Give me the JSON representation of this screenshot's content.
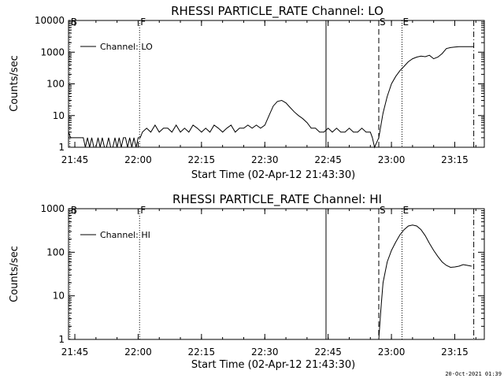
{
  "footer": {
    "timestamp": "20-Oct-2021 01:39"
  },
  "chart_data": [
    {
      "type": "line",
      "title": "RHESSI PARTICLE_RATE Channel: LO",
      "xlabel": "Start Time (02-Apr-12 21:43:30)",
      "ylabel": "Counts/sec",
      "yscale": "log",
      "xlim": [
        "21:43:30",
        "23:22:00"
      ],
      "ylim": [
        1,
        10000
      ],
      "x_ticks": [
        "21:45",
        "22:00",
        "22:15",
        "22:30",
        "22:45",
        "23:00",
        "23:15"
      ],
      "y_ticks": [
        "1",
        "10",
        "100",
        "1000",
        "10000"
      ],
      "legend": {
        "entries": [
          "Channel: LO"
        ],
        "position": "top-left"
      },
      "markers": [
        {
          "label": "B",
          "time": "21:43:50",
          "style": "dotted"
        },
        {
          "label": "F",
          "time": "22:00:20",
          "style": "dotted"
        },
        {
          "label": "",
          "time": "22:44:30",
          "style": "solid"
        },
        {
          "label": "S",
          "time": "22:57:00",
          "style": "dashed"
        },
        {
          "label": "E",
          "time": "23:02:30",
          "style": "dotted"
        },
        {
          "label": "",
          "time": "23:19:30",
          "style": "dashdot"
        }
      ],
      "series": [
        {
          "name": "Channel: LO",
          "x": [
            "21:43:30",
            "21:44:00",
            "21:45:00",
            "21:47:00",
            "21:47:30",
            "21:48:00",
            "21:48:30",
            "21:49:00",
            "21:49:30",
            "21:50:00",
            "21:50:30",
            "21:51:00",
            "21:51:30",
            "21:52:00",
            "21:52:30",
            "21:53:00",
            "21:53:30",
            "21:54:00",
            "21:54:30",
            "21:55:00",
            "21:55:30",
            "21:56:00",
            "21:56:30",
            "21:57:00",
            "21:57:30",
            "21:58:00",
            "21:58:30",
            "21:59:00",
            "21:59:30",
            "22:00:00",
            "22:00:30",
            "22:01:00",
            "22:02:00",
            "22:03:00",
            "22:04:00",
            "22:05:00",
            "22:06:00",
            "22:07:00",
            "22:08:00",
            "22:09:00",
            "22:10:00",
            "22:11:00",
            "22:12:00",
            "22:13:00",
            "22:14:00",
            "22:15:00",
            "22:16:00",
            "22:17:00",
            "22:18:00",
            "22:19:00",
            "22:20:00",
            "22:21:00",
            "22:22:00",
            "22:23:00",
            "22:24:00",
            "22:25:00",
            "22:26:00",
            "22:27:00",
            "22:28:00",
            "22:29:00",
            "22:30:00",
            "22:31:00",
            "22:32:00",
            "22:33:00",
            "22:34:00",
            "22:35:00",
            "22:36:00",
            "22:37:00",
            "22:38:00",
            "22:39:00",
            "22:40:00",
            "22:41:00",
            "22:42:00",
            "22:43:00",
            "22:44:00",
            "22:45:00",
            "22:46:00",
            "22:47:00",
            "22:48:00",
            "22:49:00",
            "22:50:00",
            "22:51:00",
            "22:52:00",
            "22:53:00",
            "22:54:00",
            "22:54:30",
            "22:55:00",
            "22:55:30",
            "22:56:00",
            "22:57:00",
            "22:58:00",
            "22:59:00",
            "23:00:00",
            "23:01:00",
            "23:02:00",
            "23:03:00",
            "23:04:00",
            "23:05:00",
            "23:06:00",
            "23:07:00",
            "23:08:00",
            "23:09:00",
            "23:10:00",
            "23:11:00",
            "23:12:00",
            "23:13:00",
            "23:14:00",
            "23:15:00",
            "23:16:00",
            "23:17:00",
            "23:18:00",
            "23:19:00",
            "23:19:30"
          ],
          "values": [
            3,
            2,
            2,
            2,
            1,
            2,
            1,
            2,
            1,
            1,
            2,
            1,
            2,
            1,
            1,
            2,
            1,
            1,
            2,
            1,
            2,
            1,
            2,
            2,
            1,
            2,
            1,
            2,
            1,
            2,
            2,
            3,
            4,
            3,
            5,
            3,
            4,
            4,
            3,
            5,
            3,
            4,
            3,
            5,
            4,
            3,
            4,
            3,
            5,
            4,
            3,
            4,
            5,
            3,
            4,
            4,
            5,
            4,
            5,
            4,
            5,
            10,
            20,
            28,
            30,
            25,
            18,
            13,
            10,
            8,
            6,
            4,
            4,
            3,
            3,
            4,
            3,
            4,
            3,
            3,
            4,
            3,
            3,
            4,
            3,
            3,
            3,
            2,
            1,
            2,
            12,
            40,
            100,
            170,
            260,
            360,
            500,
            620,
            700,
            750,
            720,
            800,
            620,
            700,
            900,
            1300,
            1400,
            1450,
            1500,
            1500,
            1500,
            1500,
            1500
          ]
        }
      ]
    },
    {
      "type": "line",
      "title": "RHESSI PARTICLE_RATE Channel: HI",
      "xlabel": "Start Time (02-Apr-12 21:43:30)",
      "ylabel": "Counts/sec",
      "yscale": "log",
      "xlim": [
        "21:43:30",
        "23:22:00"
      ],
      "ylim": [
        1,
        1000
      ],
      "x_ticks": [
        "21:45",
        "22:00",
        "22:15",
        "22:30",
        "22:45",
        "23:00",
        "23:15"
      ],
      "y_ticks": [
        "1",
        "10",
        "100",
        "1000"
      ],
      "legend": {
        "entries": [
          "Channel: HI"
        ],
        "position": "top-left"
      },
      "markers": [
        {
          "label": "B",
          "time": "21:43:50",
          "style": "dotted"
        },
        {
          "label": "F",
          "time": "22:00:20",
          "style": "dotted"
        },
        {
          "label": "",
          "time": "22:44:30",
          "style": "solid"
        },
        {
          "label": "S",
          "time": "22:57:00",
          "style": "dashed"
        },
        {
          "label": "E",
          "time": "23:02:30",
          "style": "dotted"
        },
        {
          "label": "",
          "time": "23:19:30",
          "style": "dashdot"
        }
      ],
      "series": [
        {
          "name": "Channel: HI",
          "x": [
            "22:57:00",
            "22:57:30",
            "22:58:00",
            "22:59:00",
            "23:00:00",
            "23:01:00",
            "23:02:00",
            "23:03:00",
            "23:04:00",
            "23:05:00",
            "23:06:00",
            "23:07:00",
            "23:08:00",
            "23:09:00",
            "23:10:00",
            "23:11:00",
            "23:12:00",
            "23:13:00",
            "23:14:00",
            "23:15:00",
            "23:16:00",
            "23:17:00",
            "23:18:00",
            "23:19:00"
          ],
          "values": [
            1,
            5,
            20,
            60,
            110,
            170,
            250,
            330,
            400,
            420,
            400,
            330,
            240,
            160,
            110,
            80,
            60,
            50,
            45,
            46,
            48,
            52,
            50,
            48
          ]
        }
      ]
    }
  ]
}
